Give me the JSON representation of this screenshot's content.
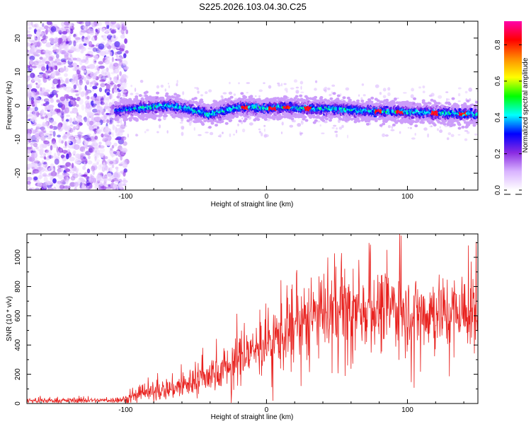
{
  "title": "S225.2026.103.04.30.C25",
  "chart_data": [
    {
      "type": "heatmap",
      "xlabel": "Height of straight line (km)",
      "ylabel": "Frequency (Hz)",
      "xlim": [
        -170,
        150
      ],
      "ylim": [
        -25,
        25
      ],
      "x_ticks": [
        -100,
        0,
        100
      ],
      "y_ticks": [
        -20,
        -10,
        0,
        10,
        20
      ],
      "colorbar": {
        "label": "Normalized spectral amplitude",
        "range": [
          0,
          0.93
        ],
        "ticks": [
          0.0,
          0.2,
          0.4,
          0.6,
          0.8
        ],
        "colors": [
          "#ffffff",
          "#d9b3ff",
          "#8a2be2",
          "#0000ff",
          "#00ffff",
          "#00ff00",
          "#ffff00",
          "#ff8c00",
          "#ff0000",
          "#ff00aa"
        ]
      },
      "noise_region_x": [
        -170,
        -107
      ],
      "signal_band": {
        "x_start": -107,
        "centerline_x": [
          -107,
          -95,
          -85,
          -70,
          -55,
          -40,
          -30,
          -20,
          -10,
          0,
          10,
          30,
          50,
          70,
          90,
          110,
          130,
          150
        ],
        "centerline_freq": [
          -1.5,
          -1.0,
          -0.5,
          0.0,
          -1.0,
          -2.5,
          -1.5,
          -0.5,
          -0.5,
          -1.0,
          -0.5,
          -0.8,
          -1.0,
          -1.5,
          -1.8,
          -2.0,
          -2.3,
          -2.5
        ],
        "peak_amplitude_x": [
          -15,
          5,
          15,
          30,
          80,
          95,
          120,
          140
        ]
      }
    },
    {
      "type": "line",
      "xlabel": "Height of straight line (km)",
      "ylabel": "SNR (10 * v/v)",
      "xlim": [
        -170,
        150
      ],
      "ylim": [
        0,
        1160
      ],
      "x_ticks": [
        -100,
        0,
        100
      ],
      "y_ticks": [
        0,
        200,
        400,
        600,
        800,
        1000
      ],
      "color": "#e8221f",
      "envelope_x": [
        -170,
        -110,
        -100,
        -90,
        -80,
        -70,
        -60,
        -50,
        -40,
        -30,
        -20,
        -10,
        0,
        10,
        20,
        30,
        40,
        50,
        60,
        70,
        80,
        90,
        100,
        110,
        120,
        130,
        140,
        150
      ],
      "envelope_mean": [
        20,
        22,
        30,
        60,
        80,
        100,
        120,
        160,
        200,
        240,
        300,
        360,
        420,
        460,
        520,
        580,
        600,
        640,
        620,
        650,
        640,
        660,
        640,
        620,
        640,
        620,
        630,
        640
      ],
      "envelope_spread": [
        15,
        15,
        25,
        45,
        60,
        70,
        80,
        100,
        110,
        130,
        150,
        170,
        190,
        200,
        210,
        220,
        230,
        240,
        240,
        240,
        240,
        240,
        240,
        240,
        240,
        240,
        240,
        240
      ]
    }
  ]
}
